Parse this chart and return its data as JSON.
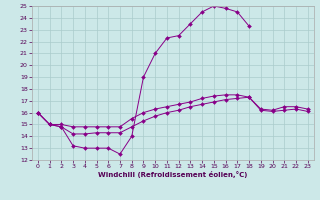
{
  "xlabel": "Windchill (Refroidissement éolien,°C)",
  "bg_color": "#cce8e8",
  "grid_color": "#aacccc",
  "line_color": "#880088",
  "xlim": [
    -0.5,
    23.5
  ],
  "ylim": [
    12,
    25
  ],
  "xticks": [
    0,
    1,
    2,
    3,
    4,
    5,
    6,
    7,
    8,
    9,
    10,
    11,
    12,
    13,
    14,
    15,
    16,
    17,
    18,
    19,
    20,
    21,
    22,
    23
  ],
  "yticks": [
    12,
    13,
    14,
    15,
    16,
    17,
    18,
    19,
    20,
    21,
    22,
    23,
    24,
    25
  ],
  "line1_x": [
    0,
    1,
    2,
    3,
    4,
    5,
    6,
    7,
    8,
    9,
    10,
    11,
    12,
    13,
    14,
    15,
    16,
    17,
    18
  ],
  "line1_y": [
    16.0,
    15.0,
    14.8,
    13.2,
    13.0,
    13.0,
    13.0,
    12.5,
    14.0,
    19.0,
    21.0,
    22.3,
    22.5,
    23.5,
    24.5,
    25.0,
    24.8,
    24.5,
    23.3
  ],
  "line2_x": [
    0,
    1,
    2,
    3,
    4,
    5,
    6,
    7,
    8,
    9,
    10,
    11,
    12,
    13,
    14,
    15,
    16,
    17,
    18,
    19,
    20,
    21,
    22,
    23
  ],
  "line2_y": [
    16.0,
    15.0,
    15.0,
    14.8,
    14.8,
    14.8,
    14.8,
    14.8,
    15.5,
    16.0,
    16.3,
    16.5,
    16.7,
    16.9,
    17.2,
    17.4,
    17.5,
    17.5,
    17.3,
    16.3,
    16.2,
    16.5,
    16.5,
    16.3
  ],
  "line3_x": [
    0,
    1,
    2,
    3,
    4,
    5,
    6,
    7,
    8,
    9,
    10,
    11,
    12,
    13,
    14,
    15,
    16,
    17,
    18,
    19,
    20,
    21,
    22,
    23
  ],
  "line3_y": [
    16.0,
    15.0,
    14.8,
    14.2,
    14.2,
    14.3,
    14.3,
    14.3,
    14.8,
    15.3,
    15.7,
    16.0,
    16.2,
    16.5,
    16.7,
    16.9,
    17.1,
    17.2,
    17.3,
    16.2,
    16.1,
    16.2,
    16.3,
    16.1
  ]
}
